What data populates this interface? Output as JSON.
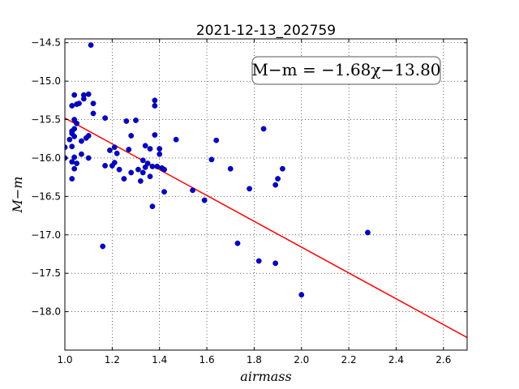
{
  "chart_data": {
    "type": "scatter",
    "title": "2021-12-13_202759",
    "xlabel": "airmass",
    "ylabel": "M−m",
    "xlim": [
      1.0,
      2.7
    ],
    "ylim": [
      -14.45,
      -18.5
    ],
    "y_inverted": true,
    "grid": true,
    "xticks": [
      1.0,
      1.2,
      1.4,
      1.6,
      1.8,
      2.0,
      2.2,
      2.4,
      2.6
    ],
    "xtick_labels": [
      "1.0",
      "1.2",
      "1.4",
      "1.6",
      "1.8",
      "2.0",
      "2.2",
      "2.4",
      "2.6"
    ],
    "yticks": [
      -14.5,
      -15.0,
      -15.5,
      -16.0,
      -16.5,
      -17.0,
      -17.5,
      -18.0
    ],
    "ytick_labels": [
      "−14.5",
      "−15.0",
      "−15.5",
      "−16.0",
      "−16.5",
      "−17.0",
      "−17.5",
      "−18.0"
    ],
    "annotation": "M−m = −1.68χ−13.80",
    "annotation_location": "top-right",
    "fit": {
      "slope": -1.68,
      "intercept": -13.8,
      "color": "#ff0000"
    },
    "point_color": "#0000cc",
    "points": [
      [
        1.11,
        -14.53
      ],
      [
        1.04,
        -15.18
      ],
      [
        1.08,
        -15.18
      ],
      [
        1.1,
        -15.17
      ],
      [
        1.03,
        -15.32
      ],
      [
        1.05,
        -15.3
      ],
      [
        1.06,
        -15.29
      ],
      [
        1.08,
        -15.23
      ],
      [
        1.12,
        -15.29
      ],
      [
        1.12,
        -15.42
      ],
      [
        1.04,
        -15.5
      ],
      [
        1.05,
        -15.55
      ],
      [
        1.04,
        -15.62
      ],
      [
        1.03,
        -15.65
      ],
      [
        1.03,
        -15.68
      ],
      [
        1.04,
        -15.72
      ],
      [
        1.02,
        -15.76
      ],
      [
        1.07,
        -15.78
      ],
      [
        1.09,
        -15.74
      ],
      [
        1.1,
        -15.71
      ],
      [
        1.0,
        -15.86
      ],
      [
        1.03,
        -15.85
      ],
      [
        1.07,
        -15.95
      ],
      [
        1.04,
        -15.99
      ],
      [
        1.0,
        -16.0
      ],
      [
        1.03,
        -16.05
      ],
      [
        1.05,
        -16.07
      ],
      [
        1.1,
        -16.0
      ],
      [
        1.04,
        -16.14
      ],
      [
        1.03,
        -16.27
      ],
      [
        1.17,
        -15.48
      ],
      [
        1.19,
        -15.9
      ],
      [
        1.17,
        -16.1
      ],
      [
        1.2,
        -16.1
      ],
      [
        1.21,
        -16.06
      ],
      [
        1.21,
        -15.86
      ],
      [
        1.22,
        -15.94
      ],
      [
        1.23,
        -16.15
      ],
      [
        1.25,
        -16.27
      ],
      [
        1.26,
        -15.52
      ],
      [
        1.27,
        -15.89
      ],
      [
        1.28,
        -15.71
      ],
      [
        1.28,
        -16.19
      ],
      [
        1.3,
        -15.51
      ],
      [
        1.31,
        -16.15
      ],
      [
        1.32,
        -16.3
      ],
      [
        1.33,
        -16.19
      ],
      [
        1.33,
        -16.03
      ],
      [
        1.34,
        -15.84
      ],
      [
        1.34,
        -16.12
      ],
      [
        1.35,
        -16.07
      ],
      [
        1.36,
        -15.88
      ],
      [
        1.36,
        -16.24
      ],
      [
        1.37,
        -16.63
      ],
      [
        1.37,
        -16.11
      ],
      [
        1.38,
        -15.7
      ],
      [
        1.38,
        -15.25
      ],
      [
        1.38,
        -15.32
      ],
      [
        1.39,
        -16.11
      ],
      [
        1.4,
        -15.88
      ],
      [
        1.4,
        -15.95
      ],
      [
        1.41,
        -16.13
      ],
      [
        1.42,
        -16.15
      ],
      [
        1.42,
        -16.44
      ],
      [
        1.47,
        -15.76
      ],
      [
        1.54,
        -16.42
      ],
      [
        1.59,
        -16.55
      ],
      [
        1.62,
        -16.02
      ],
      [
        1.64,
        -15.77
      ],
      [
        1.7,
        -16.14
      ],
      [
        1.73,
        -17.11
      ],
      [
        1.78,
        -16.4
      ],
      [
        1.82,
        -17.34
      ],
      [
        1.84,
        -15.62
      ],
      [
        1.89,
        -16.35
      ],
      [
        1.89,
        -17.37
      ],
      [
        1.9,
        -16.27
      ],
      [
        1.92,
        -16.14
      ],
      [
        1.16,
        -17.15
      ],
      [
        2.0,
        -17.78
      ],
      [
        2.28,
        -16.97
      ]
    ]
  }
}
